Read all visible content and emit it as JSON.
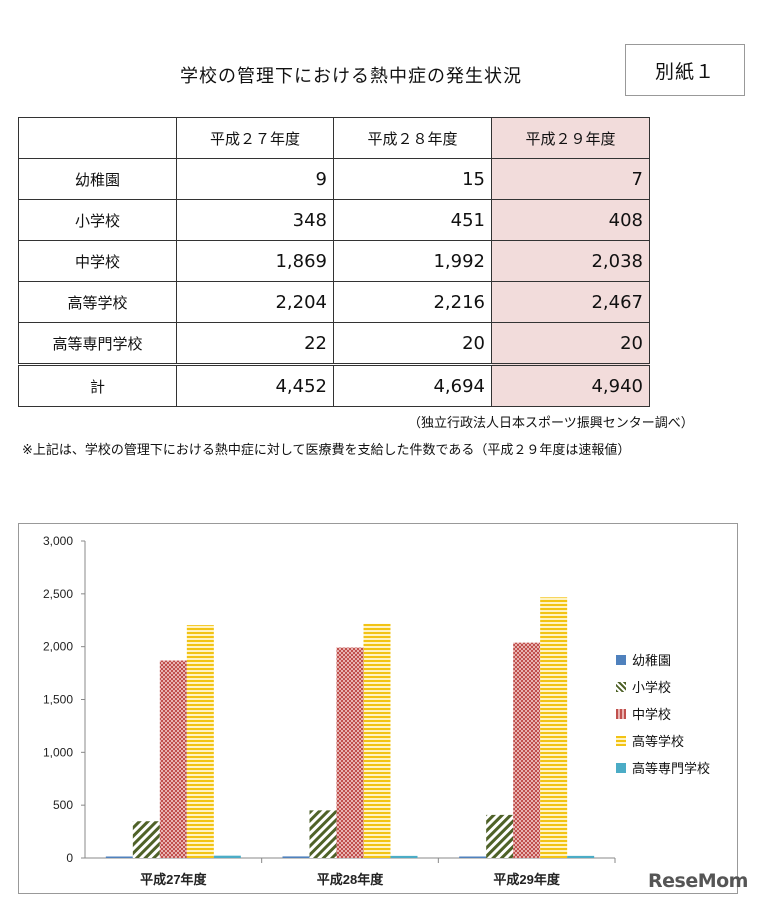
{
  "title": "学校の管理下における熱中症の発生状況",
  "appendix_label": "別紙１",
  "table": {
    "headers": [
      "",
      "平成２７年度",
      "平成２８年度",
      "平成２９年度"
    ],
    "rows": [
      {
        "label": "幼稚園",
        "values": [
          "9",
          "15",
          "7"
        ]
      },
      {
        "label": "小学校",
        "values": [
          "348",
          "451",
          "408"
        ]
      },
      {
        "label": "中学校",
        "values": [
          "1,869",
          "1,992",
          "2,038"
        ]
      },
      {
        "label": "高等学校",
        "values": [
          "2,204",
          "2,216",
          "2,467"
        ]
      },
      {
        "label": "高等専門学校",
        "values": [
          "22",
          "20",
          "20"
        ]
      }
    ],
    "total": {
      "label": "計",
      "values": [
        "4,452",
        "4,694",
        "4,940"
      ]
    },
    "highlight_color": "#f2dcdb"
  },
  "source_note": "（独立行政法人日本スポーツ振興センター調べ）",
  "footnote": "※上記は、学校の管理下における熱中症に対して医療費を支給した件数である（平成２９年度は速報値）",
  "chart_data": {
    "type": "bar",
    "categories": [
      "平成27年度",
      "平成28年度",
      "平成29年度"
    ],
    "series": [
      {
        "name": "幼稚園",
        "values": [
          9,
          15,
          7
        ],
        "color": "#4f81bd"
      },
      {
        "name": "小学校",
        "values": [
          348,
          451,
          408
        ],
        "color": "#4f6228"
      },
      {
        "name": "中学校",
        "values": [
          1869,
          1992,
          2038
        ],
        "color": "#c0504d"
      },
      {
        "name": "高等学校",
        "values": [
          2204,
          2216,
          2467
        ],
        "color": "#f2c314"
      },
      {
        "name": "高等専門学校",
        "values": [
          22,
          20,
          20
        ],
        "color": "#4bacc6"
      }
    ],
    "ylim": [
      0,
      3000
    ],
    "yticks": [
      "0",
      "500",
      "1,000",
      "1,500",
      "2,000",
      "2,500",
      "3,000"
    ],
    "ytick_values": [
      0,
      500,
      1000,
      1500,
      2000,
      2500,
      3000
    ],
    "legend_position": "right",
    "grid": false
  },
  "watermark": "ReseMom"
}
